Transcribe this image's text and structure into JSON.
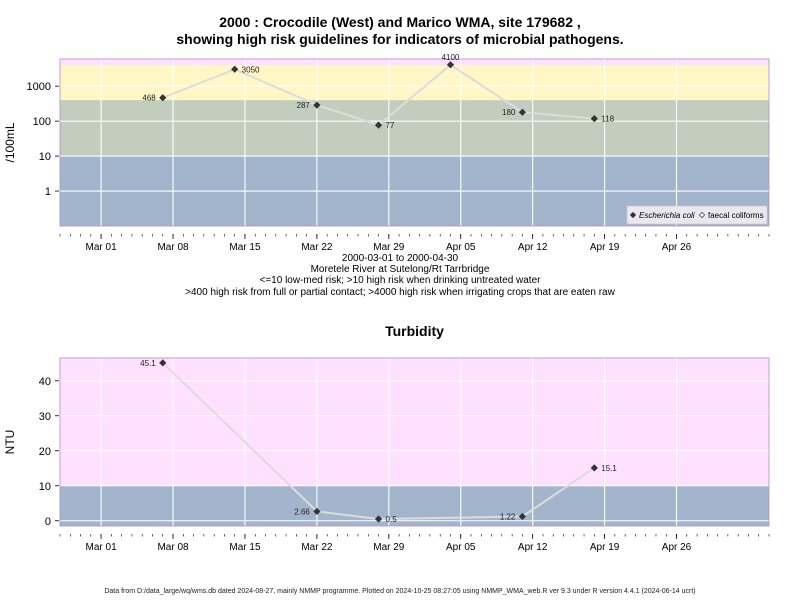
{
  "header": {
    "title_line1": "2000 : Crocodile (West) and Marico WMA, site 179682 ,",
    "title_line2": "showing high risk guidelines for indicators of microbial pathogens."
  },
  "info": {
    "date_range": "2000-03-01 to 2000-04-30",
    "site": "Moretele River at Sutelong/Rt Tarrbridge",
    "risk_line1": "<=10 low-med risk; >10 high risk when drinking untreated water",
    "risk_line2": ">400 high risk from full or partial contact; >4000 high risk when irrigating crops that are eaten raw"
  },
  "footer": {
    "text": "Data from D:/data_large/wq/wms.db dated 2024-08-27, mainly NMMP programme. Plotted on 2024-10-25 08:27:05 using NMMP_WMA_web.R ver 9.3 under R version 4.4.1 (2024-06-14 ucrt)"
  },
  "colors": {
    "panel_bg": "#ffe0ff",
    "band_low": "#a2b5cd",
    "band_mid": "#c3cdbe",
    "band_high": "#fff7c6",
    "line": "#dcdcdc",
    "marker": "#333333",
    "panel_border": "#b48cc8"
  },
  "chart_data": [
    {
      "type": "line",
      "title": "",
      "ylabel": "/100mL",
      "y_scale": "log10",
      "ylim": [
        0.1,
        6000
      ],
      "xlim": [
        "2000-02-26",
        "2000-05-05"
      ],
      "grid": true,
      "x_ticks": [
        {
          "date": "2000-03-01",
          "label": "Mar 01"
        },
        {
          "date": "2000-03-08",
          "label": "Mar 08"
        },
        {
          "date": "2000-03-15",
          "label": "Mar 15"
        },
        {
          "date": "2000-03-22",
          "label": "Mar 22"
        },
        {
          "date": "2000-03-29",
          "label": "Mar 29"
        },
        {
          "date": "2000-04-05",
          "label": "Apr 05"
        },
        {
          "date": "2000-04-12",
          "label": "Apr 12"
        },
        {
          "date": "2000-04-19",
          "label": "Apr 19"
        },
        {
          "date": "2000-04-26",
          "label": "Apr 26"
        }
      ],
      "y_ticks": [
        {
          "value": 1,
          "label": "1"
        },
        {
          "value": 10,
          "label": "10"
        },
        {
          "value": 100,
          "label": "100"
        },
        {
          "value": 1000,
          "label": "1000"
        }
      ],
      "bands": [
        {
          "from": 0.1,
          "to": 10,
          "color": "#a2b5cd"
        },
        {
          "from": 10,
          "to": 400,
          "color": "#c3cdbe"
        },
        {
          "from": 400,
          "to": 4000,
          "color": "#fff7c6"
        }
      ],
      "series": [
        {
          "name": "Escherichia coli",
          "x": [
            "2000-03-07",
            "2000-03-14",
            "2000-03-22",
            "2000-03-28",
            "2000-04-04",
            "2000-04-11",
            "2000-04-18"
          ],
          "values": [
            468,
            3050,
            287,
            77,
            4100,
            180,
            118
          ],
          "labels": [
            "468",
            "3050",
            "287",
            "77",
            "4100",
            "180",
            "118"
          ],
          "label_side": [
            "left",
            "right",
            "left",
            "right",
            "top",
            "left",
            "right"
          ]
        }
      ],
      "legend": {
        "position": "bottom-right",
        "entries": [
          {
            "label": "Escherichia coli",
            "marker": "filled-diamond",
            "italic": true
          },
          {
            "label": "faecal coliforms",
            "marker": "open-diamond",
            "italic": false
          }
        ]
      }
    },
    {
      "type": "line",
      "title": "Turbidity",
      "ylabel": "NTU",
      "y_scale": "linear",
      "ylim": [
        -1.5,
        46.5
      ],
      "xlim": [
        "2000-02-26",
        "2000-05-05"
      ],
      "grid": true,
      "x_ticks": [
        {
          "date": "2000-03-01",
          "label": "Mar 01"
        },
        {
          "date": "2000-03-08",
          "label": "Mar 08"
        },
        {
          "date": "2000-03-15",
          "label": "Mar 15"
        },
        {
          "date": "2000-03-22",
          "label": "Mar 22"
        },
        {
          "date": "2000-03-29",
          "label": "Mar 29"
        },
        {
          "date": "2000-04-05",
          "label": "Apr 05"
        },
        {
          "date": "2000-04-12",
          "label": "Apr 12"
        },
        {
          "date": "2000-04-19",
          "label": "Apr 19"
        },
        {
          "date": "2000-04-26",
          "label": "Apr 26"
        }
      ],
      "y_ticks": [
        {
          "value": 0,
          "label": "0"
        },
        {
          "value": 10,
          "label": "10"
        },
        {
          "value": 20,
          "label": "20"
        },
        {
          "value": 30,
          "label": "30"
        },
        {
          "value": 40,
          "label": "40"
        }
      ],
      "bands": [
        {
          "from": -1.5,
          "to": 10,
          "color": "#a2b5cd"
        }
      ],
      "series": [
        {
          "x": [
            "2000-03-07",
            "2000-03-22",
            "2000-03-28",
            "2000-04-11",
            "2000-04-18"
          ],
          "values": [
            45.1,
            2.66,
            0.5,
            1.22,
            15.1
          ],
          "labels": [
            "45.1",
            "2.66",
            "0.5",
            "1.22",
            "15.1"
          ],
          "label_side": [
            "left",
            "left",
            "right",
            "left",
            "right"
          ]
        }
      ]
    }
  ]
}
